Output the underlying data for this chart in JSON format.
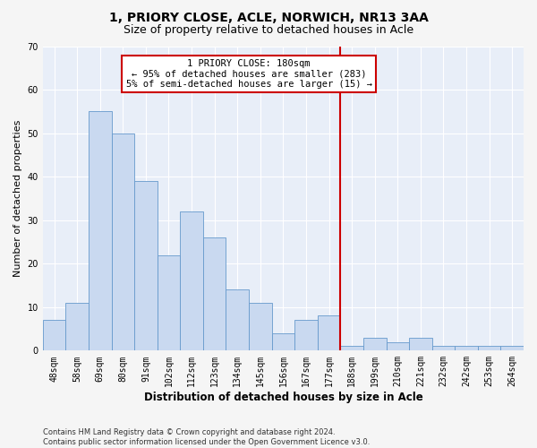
{
  "title1": "1, PRIORY CLOSE, ACLE, NORWICH, NR13 3AA",
  "title2": "Size of property relative to detached houses in Acle",
  "xlabel": "Distribution of detached houses by size in Acle",
  "ylabel": "Number of detached properties",
  "categories": [
    "48sqm",
    "58sqm",
    "69sqm",
    "80sqm",
    "91sqm",
    "102sqm",
    "112sqm",
    "123sqm",
    "134sqm",
    "145sqm",
    "156sqm",
    "167sqm",
    "177sqm",
    "188sqm",
    "199sqm",
    "210sqm",
    "221sqm",
    "232sqm",
    "242sqm",
    "253sqm",
    "264sqm"
  ],
  "values": [
    7,
    11,
    55,
    50,
    39,
    22,
    32,
    26,
    14,
    11,
    4,
    7,
    8,
    1,
    3,
    2,
    3,
    1,
    1,
    1,
    1
  ],
  "bar_color": "#c9d9f0",
  "bar_edge_color": "#6699cc",
  "highlight_line_index": 12,
  "highlight_line_color": "#cc0000",
  "annotation_title": "1 PRIORY CLOSE: 180sqm",
  "annotation_line1": "← 95% of detached houses are smaller (283)",
  "annotation_line2": "5% of semi-detached houses are larger (15) →",
  "annotation_box_color": "#cc0000",
  "ylim": [
    0,
    70
  ],
  "yticks": [
    0,
    10,
    20,
    30,
    40,
    50,
    60,
    70
  ],
  "footer1": "Contains HM Land Registry data © Crown copyright and database right 2024.",
  "footer2": "Contains public sector information licensed under the Open Government Licence v3.0.",
  "bg_color": "#e8eef8",
  "grid_color": "#ffffff",
  "title1_fontsize": 10,
  "title2_fontsize": 9,
  "tick_fontsize": 7,
  "ylabel_fontsize": 8,
  "xlabel_fontsize": 8.5,
  "footer_fontsize": 6,
  "annotation_fontsize": 7.5
}
